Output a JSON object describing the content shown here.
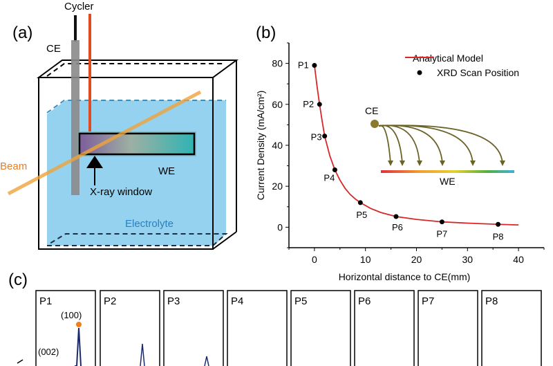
{
  "panel_a": {
    "label": "(a)",
    "cycler": "Cycler",
    "ce": "CE",
    "beam": "Beam",
    "we": "WE",
    "xray_window": "X-ray window",
    "electrolyte": "Electrolyte"
  },
  "panel_b": {
    "label": "(b)"
  },
  "panel_c": {
    "label": "(c)",
    "positions": [
      "P1",
      "P2",
      "P3",
      "P4",
      "P5",
      "P6",
      "P7",
      "P8"
    ],
    "peak_labels": [
      "(100)",
      "(002)"
    ]
  },
  "colors": {
    "model_line": "#d62728",
    "scan_point": "#000000",
    "electrolyte": "#8fd0ee",
    "beam": "#f0a33a",
    "cycler_lead": "#e24a1f",
    "ce_rod": "#8a8a8a",
    "inset_arrows": "#6b6228",
    "peak_line": "#1a2a6c",
    "peak_marker": "#f07f1a"
  },
  "chart_data": {
    "type": "line",
    "title": "",
    "xlabel": "Horizontal distance to CE(mm)",
    "ylabel": "Current Density (mA/cm²)",
    "xlim": [
      -5,
      45
    ],
    "ylim": [
      -10,
      90
    ],
    "xticks": [
      0,
      10,
      20,
      30,
      40
    ],
    "yticks": [
      0,
      20,
      40,
      60,
      80
    ],
    "grid": false,
    "legend": "top-right",
    "series": [
      {
        "name": "Analytical Model",
        "kind": "line",
        "x": [
          0,
          0.5,
          1,
          1.5,
          2,
          3,
          4,
          5,
          6,
          7,
          8,
          9,
          11,
          13,
          16,
          20,
          25,
          30,
          36,
          40
        ],
        "y": [
          79,
          69,
          60,
          52,
          44.5,
          35,
          28,
          23,
          19,
          16,
          13.8,
          12,
          9.2,
          7.2,
          5.2,
          3.8,
          2.6,
          2.0,
          1.4,
          1.1
        ]
      },
      {
        "name": "XRD Scan Position",
        "kind": "scatter",
        "labels": [
          "P1",
          "P2",
          "P3",
          "P4",
          "P5",
          "P6",
          "P7",
          "P8"
        ],
        "x": [
          0,
          1,
          2,
          4,
          9,
          16,
          25,
          36
        ],
        "y": [
          79,
          60,
          44.5,
          28,
          12,
          5.2,
          2.6,
          1.4
        ]
      }
    ],
    "inset": {
      "source": "CE",
      "target": "WE"
    }
  }
}
